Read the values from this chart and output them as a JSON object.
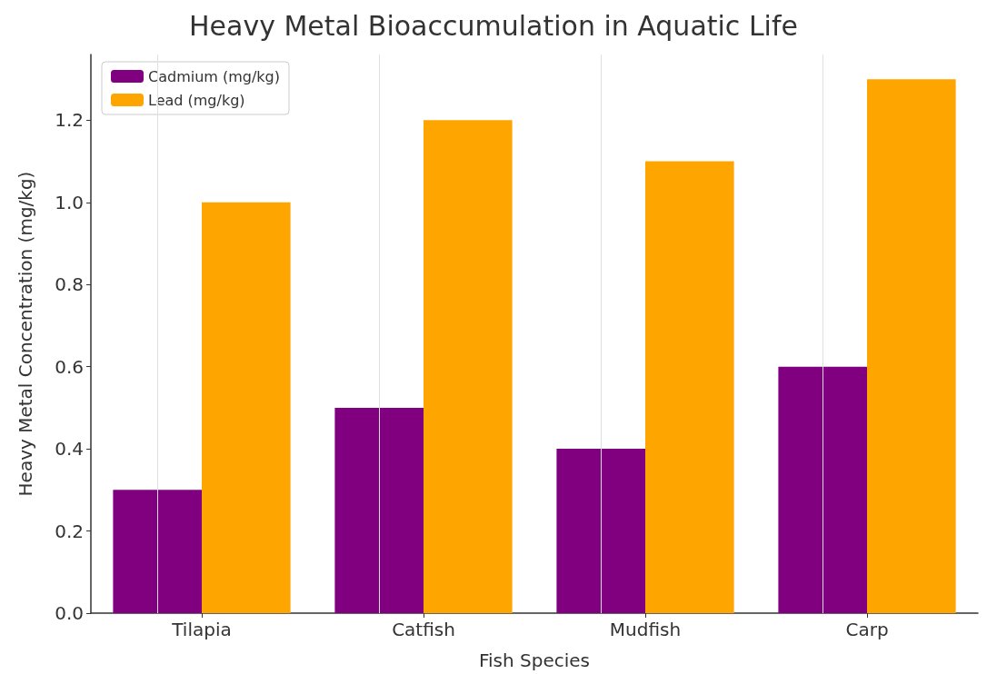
{
  "chart_data": {
    "type": "bar",
    "title": "Heavy Metal Bioaccumulation in Aquatic Life",
    "xlabel": "Fish Species",
    "ylabel": "Heavy Metal Concentration (mg/kg)",
    "categories": [
      "Tilapia",
      "Catfish",
      "Mudfish",
      "Carp"
    ],
    "series": [
      {
        "name": "Cadmium (mg/kg)",
        "color": "#800080",
        "values": [
          0.3,
          0.5,
          0.4,
          0.6
        ]
      },
      {
        "name": "Lead (mg/kg)",
        "color": "#ffa500",
        "values": [
          1.0,
          1.2,
          1.1,
          1.3
        ]
      }
    ],
    "ylim": [
      0,
      1.36
    ],
    "yticks": [
      {
        "value": 0,
        "label": "0.0"
      },
      {
        "value": 0.2,
        "label": "0.2"
      },
      {
        "value": 0.4,
        "label": "0.4"
      },
      {
        "value": 0.6,
        "label": "0.6"
      },
      {
        "value": 0.8,
        "label": "0.8"
      },
      {
        "value": 1.0,
        "label": "1.0"
      },
      {
        "value": 1.2,
        "label": "1.2"
      }
    ],
    "grid": "x",
    "legend": "top left"
  }
}
